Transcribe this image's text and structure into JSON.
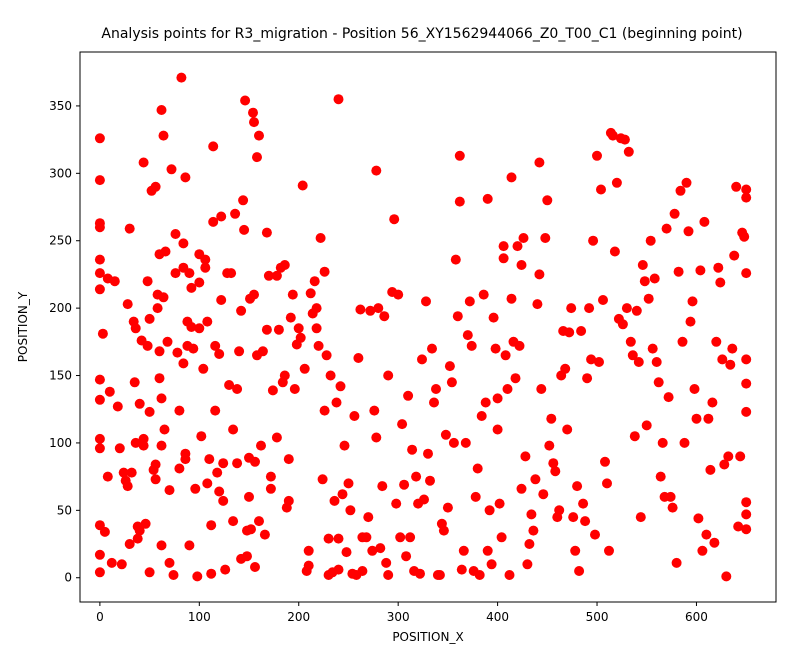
{
  "chart_data": {
    "type": "scatter",
    "title": "Analysis points for R3_migration - Position 56_XY1562944066_Z0_T00_C1 (beginning point)",
    "xlabel": "POSITION_X",
    "ylabel": "POSITION_Y",
    "xlim": [
      -20,
      680
    ],
    "ylim": [
      -18,
      390
    ],
    "x_ticks": [
      0,
      100,
      200,
      300,
      400,
      500,
      600
    ],
    "y_ticks": [
      0,
      50,
      100,
      150,
      200,
      250,
      300,
      350
    ],
    "grid": false,
    "legend": "none",
    "marker_color": "#ff0000",
    "points": [
      [
        0,
        326
      ],
      [
        0,
        295
      ],
      [
        0,
        263
      ],
      [
        0,
        260
      ],
      [
        0,
        236
      ],
      [
        0,
        226
      ],
      [
        0,
        214
      ],
      [
        0,
        147
      ],
      [
        0,
        132
      ],
      [
        0,
        103
      ],
      [
        0,
        96
      ],
      [
        0,
        39
      ],
      [
        0,
        17
      ],
      [
        0,
        4
      ],
      [
        3,
        181
      ],
      [
        5,
        34
      ],
      [
        8,
        222
      ],
      [
        8,
        75
      ],
      [
        10,
        138
      ],
      [
        12,
        11
      ],
      [
        15,
        220
      ],
      [
        18,
        127
      ],
      [
        20,
        96
      ],
      [
        22,
        10
      ],
      [
        24,
        78
      ],
      [
        26,
        72
      ],
      [
        28,
        203
      ],
      [
        28,
        68
      ],
      [
        30,
        259
      ],
      [
        30,
        25
      ],
      [
        32,
        78
      ],
      [
        34,
        190
      ],
      [
        35,
        145
      ],
      [
        36,
        100
      ],
      [
        36,
        185
      ],
      [
        38,
        38
      ],
      [
        38,
        29
      ],
      [
        40,
        35
      ],
      [
        40,
        129
      ],
      [
        42,
        176
      ],
      [
        44,
        308
      ],
      [
        44,
        103
      ],
      [
        44,
        98
      ],
      [
        46,
        40
      ],
      [
        48,
        220
      ],
      [
        48,
        172
      ],
      [
        50,
        192
      ],
      [
        50,
        123
      ],
      [
        50,
        4
      ],
      [
        52,
        287
      ],
      [
        54,
        80
      ],
      [
        56,
        290
      ],
      [
        56,
        84
      ],
      [
        56,
        73
      ],
      [
        58,
        210
      ],
      [
        58,
        200
      ],
      [
        60,
        240
      ],
      [
        60,
        168
      ],
      [
        60,
        148
      ],
      [
        62,
        347
      ],
      [
        62,
        133
      ],
      [
        62,
        98
      ],
      [
        62,
        24
      ],
      [
        64,
        328
      ],
      [
        64,
        208
      ],
      [
        65,
        110
      ],
      [
        66,
        242
      ],
      [
        68,
        175
      ],
      [
        70,
        65
      ],
      [
        70,
        11
      ],
      [
        72,
        303
      ],
      [
        74,
        2
      ],
      [
        76,
        255
      ],
      [
        76,
        226
      ],
      [
        78,
        167
      ],
      [
        80,
        124
      ],
      [
        80,
        81
      ],
      [
        82,
        371
      ],
      [
        84,
        248
      ],
      [
        84,
        159
      ],
      [
        84,
        230
      ],
      [
        86,
        88
      ],
      [
        86,
        92
      ],
      [
        86,
        297
      ],
      [
        88,
        190
      ],
      [
        88,
        172
      ],
      [
        90,
        226
      ],
      [
        90,
        24
      ],
      [
        92,
        215
      ],
      [
        92,
        186
      ],
      [
        94,
        170
      ],
      [
        96,
        66
      ],
      [
        98,
        1
      ],
      [
        100,
        240
      ],
      [
        100,
        219
      ],
      [
        100,
        185
      ],
      [
        102,
        105
      ],
      [
        104,
        155
      ],
      [
        106,
        236
      ],
      [
        106,
        230
      ],
      [
        108,
        190
      ],
      [
        108,
        70
      ],
      [
        110,
        88
      ],
      [
        112,
        3
      ],
      [
        112,
        39
      ],
      [
        114,
        264
      ],
      [
        114,
        320
      ],
      [
        116,
        172
      ],
      [
        116,
        124
      ],
      [
        118,
        78
      ],
      [
        120,
        166
      ],
      [
        120,
        64
      ],
      [
        122,
        268
      ],
      [
        122,
        206
      ],
      [
        124,
        85
      ],
      [
        124,
        57
      ],
      [
        126,
        6
      ],
      [
        128,
        226
      ],
      [
        130,
        143
      ],
      [
        132,
        226
      ],
      [
        134,
        110
      ],
      [
        134,
        42
      ],
      [
        136,
        270
      ],
      [
        138,
        85
      ],
      [
        138,
        140
      ],
      [
        140,
        168
      ],
      [
        142,
        198
      ],
      [
        142,
        14
      ],
      [
        144,
        280
      ],
      [
        145,
        258
      ],
      [
        146,
        354
      ],
      [
        148,
        35
      ],
      [
        148,
        16
      ],
      [
        150,
        89
      ],
      [
        150,
        60
      ],
      [
        151,
        207
      ],
      [
        152,
        36
      ],
      [
        154,
        345
      ],
      [
        155,
        338
      ],
      [
        155,
        210
      ],
      [
        156,
        86
      ],
      [
        156,
        8
      ],
      [
        158,
        312
      ],
      [
        158,
        165
      ],
      [
        160,
        42
      ],
      [
        160,
        328
      ],
      [
        162,
        98
      ],
      [
        164,
        168
      ],
      [
        166,
        32
      ],
      [
        168,
        184
      ],
      [
        168,
        256
      ],
      [
        170,
        224
      ],
      [
        172,
        75
      ],
      [
        172,
        66
      ],
      [
        174,
        139
      ],
      [
        178,
        104
      ],
      [
        178,
        224
      ],
      [
        180,
        184
      ],
      [
        182,
        230
      ],
      [
        184,
        145
      ],
      [
        186,
        232
      ],
      [
        186,
        150
      ],
      [
        188,
        52
      ],
      [
        190,
        88
      ],
      [
        190,
        57
      ],
      [
        192,
        193
      ],
      [
        194,
        210
      ],
      [
        196,
        140
      ],
      [
        198,
        173
      ],
      [
        200,
        185
      ],
      [
        202,
        178
      ],
      [
        204,
        291
      ],
      [
        206,
        155
      ],
      [
        208,
        5
      ],
      [
        210,
        20
      ],
      [
        210,
        9
      ],
      [
        212,
        211
      ],
      [
        214,
        196
      ],
      [
        216,
        220
      ],
      [
        218,
        200
      ],
      [
        218,
        185
      ],
      [
        220,
        172
      ],
      [
        222,
        252
      ],
      [
        224,
        73
      ],
      [
        226,
        124
      ],
      [
        226,
        227
      ],
      [
        228,
        165
      ],
      [
        230,
        29
      ],
      [
        230,
        2
      ],
      [
        232,
        150
      ],
      [
        234,
        4
      ],
      [
        236,
        57
      ],
      [
        238,
        130
      ],
      [
        240,
        355
      ],
      [
        240,
        29
      ],
      [
        240,
        6
      ],
      [
        242,
        142
      ],
      [
        244,
        62
      ],
      [
        246,
        98
      ],
      [
        248,
        19
      ],
      [
        250,
        70
      ],
      [
        252,
        50
      ],
      [
        254,
        3
      ],
      [
        256,
        120
      ],
      [
        258,
        2
      ],
      [
        260,
        163
      ],
      [
        262,
        199
      ],
      [
        264,
        30
      ],
      [
        264,
        5
      ],
      [
        268,
        30
      ],
      [
        270,
        45
      ],
      [
        272,
        198
      ],
      [
        274,
        20
      ],
      [
        276,
        124
      ],
      [
        278,
        302
      ],
      [
        278,
        104
      ],
      [
        280,
        200
      ],
      [
        282,
        22
      ],
      [
        284,
        68
      ],
      [
        286,
        194
      ],
      [
        288,
        11
      ],
      [
        290,
        150
      ],
      [
        290,
        2
      ],
      [
        294,
        212
      ],
      [
        296,
        266
      ],
      [
        298,
        55
      ],
      [
        300,
        210
      ],
      [
        302,
        30
      ],
      [
        304,
        114
      ],
      [
        306,
        69
      ],
      [
        308,
        16
      ],
      [
        310,
        135
      ],
      [
        312,
        30
      ],
      [
        314,
        95
      ],
      [
        316,
        5
      ],
      [
        318,
        75
      ],
      [
        320,
        55
      ],
      [
        322,
        3
      ],
      [
        324,
        162
      ],
      [
        326,
        58
      ],
      [
        328,
        205
      ],
      [
        330,
        92
      ],
      [
        332,
        72
      ],
      [
        334,
        170
      ],
      [
        336,
        130
      ],
      [
        338,
        140
      ],
      [
        340,
        2
      ],
      [
        342,
        2
      ],
      [
        344,
        40
      ],
      [
        346,
        35
      ],
      [
        348,
        106
      ],
      [
        350,
        52
      ],
      [
        352,
        157
      ],
      [
        354,
        145
      ],
      [
        356,
        100
      ],
      [
        358,
        236
      ],
      [
        360,
        194
      ],
      [
        362,
        313
      ],
      [
        362,
        279
      ],
      [
        364,
        6
      ],
      [
        366,
        20
      ],
      [
        368,
        100
      ],
      [
        370,
        180
      ],
      [
        372,
        205
      ],
      [
        374,
        172
      ],
      [
        376,
        5
      ],
      [
        378,
        60
      ],
      [
        380,
        81
      ],
      [
        382,
        2
      ],
      [
        384,
        120
      ],
      [
        386,
        210
      ],
      [
        388,
        130
      ],
      [
        390,
        20
      ],
      [
        390,
        281
      ],
      [
        392,
        50
      ],
      [
        394,
        10
      ],
      [
        396,
        193
      ],
      [
        398,
        170
      ],
      [
        400,
        133
      ],
      [
        400,
        110
      ],
      [
        402,
        55
      ],
      [
        404,
        30
      ],
      [
        406,
        246
      ],
      [
        406,
        237
      ],
      [
        408,
        165
      ],
      [
        410,
        140
      ],
      [
        412,
        2
      ],
      [
        414,
        297
      ],
      [
        414,
        207
      ],
      [
        416,
        175
      ],
      [
        418,
        148
      ],
      [
        420,
        246
      ],
      [
        422,
        172
      ],
      [
        424,
        232
      ],
      [
        424,
        66
      ],
      [
        426,
        252
      ],
      [
        428,
        90
      ],
      [
        430,
        10
      ],
      [
        432,
        25
      ],
      [
        434,
        47
      ],
      [
        436,
        35
      ],
      [
        438,
        73
      ],
      [
        440,
        203
      ],
      [
        442,
        308
      ],
      [
        442,
        225
      ],
      [
        444,
        140
      ],
      [
        446,
        62
      ],
      [
        448,
        252
      ],
      [
        450,
        280
      ],
      [
        452,
        98
      ],
      [
        454,
        118
      ],
      [
        456,
        85
      ],
      [
        458,
        79
      ],
      [
        460,
        45
      ],
      [
        462,
        50
      ],
      [
        464,
        150
      ],
      [
        466,
        183
      ],
      [
        468,
        155
      ],
      [
        470,
        110
      ],
      [
        472,
        182
      ],
      [
        474,
        200
      ],
      [
        476,
        45
      ],
      [
        478,
        20
      ],
      [
        480,
        68
      ],
      [
        482,
        5
      ],
      [
        484,
        183
      ],
      [
        486,
        55
      ],
      [
        488,
        42
      ],
      [
        490,
        148
      ],
      [
        492,
        200
      ],
      [
        494,
        162
      ],
      [
        496,
        250
      ],
      [
        498,
        32
      ],
      [
        500,
        313
      ],
      [
        502,
        160
      ],
      [
        504,
        288
      ],
      [
        506,
        206
      ],
      [
        508,
        86
      ],
      [
        510,
        70
      ],
      [
        512,
        20
      ],
      [
        514,
        330
      ],
      [
        516,
        328
      ],
      [
        518,
        242
      ],
      [
        520,
        293
      ],
      [
        522,
        192
      ],
      [
        524,
        326
      ],
      [
        526,
        188
      ],
      [
        528,
        325
      ],
      [
        530,
        200
      ],
      [
        532,
        316
      ],
      [
        534,
        175
      ],
      [
        536,
        165
      ],
      [
        538,
        105
      ],
      [
        540,
        198
      ],
      [
        542,
        160
      ],
      [
        544,
        45
      ],
      [
        546,
        232
      ],
      [
        548,
        220
      ],
      [
        550,
        113
      ],
      [
        552,
        207
      ],
      [
        554,
        250
      ],
      [
        556,
        170
      ],
      [
        558,
        222
      ],
      [
        560,
        160
      ],
      [
        562,
        145
      ],
      [
        564,
        75
      ],
      [
        566,
        100
      ],
      [
        568,
        60
      ],
      [
        570,
        259
      ],
      [
        572,
        134
      ],
      [
        574,
        60
      ],
      [
        576,
        52
      ],
      [
        578,
        270
      ],
      [
        580,
        11
      ],
      [
        582,
        227
      ],
      [
        584,
        287
      ],
      [
        586,
        175
      ],
      [
        588,
        100
      ],
      [
        590,
        293
      ],
      [
        592,
        257
      ],
      [
        594,
        190
      ],
      [
        596,
        205
      ],
      [
        598,
        140
      ],
      [
        600,
        118
      ],
      [
        602,
        44
      ],
      [
        604,
        228
      ],
      [
        606,
        20
      ],
      [
        608,
        264
      ],
      [
        610,
        32
      ],
      [
        612,
        118
      ],
      [
        614,
        80
      ],
      [
        616,
        130
      ],
      [
        618,
        26
      ],
      [
        620,
        175
      ],
      [
        622,
        230
      ],
      [
        624,
        219
      ],
      [
        626,
        162
      ],
      [
        628,
        84
      ],
      [
        630,
        1
      ],
      [
        632,
        90
      ],
      [
        634,
        158
      ],
      [
        636,
        170
      ],
      [
        638,
        239
      ],
      [
        640,
        290
      ],
      [
        642,
        38
      ],
      [
        644,
        90
      ],
      [
        646,
        256
      ],
      [
        648,
        253
      ],
      [
        650,
        288
      ],
      [
        650,
        282
      ],
      [
        650,
        226
      ],
      [
        650,
        162
      ],
      [
        650,
        144
      ],
      [
        650,
        123
      ],
      [
        650,
        56
      ],
      [
        650,
        47
      ],
      [
        650,
        36
      ]
    ]
  }
}
